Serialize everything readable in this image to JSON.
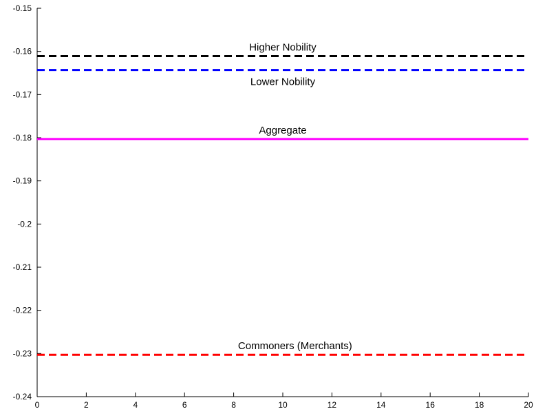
{
  "chart_data": {
    "type": "line",
    "title": "",
    "xlabel": "",
    "ylabel": "",
    "xlim": [
      0,
      20
    ],
    "ylim": [
      -0.24,
      -0.15
    ],
    "x_ticks": [
      0,
      2,
      4,
      6,
      8,
      10,
      12,
      14,
      16,
      18,
      20
    ],
    "x_tick_labels": [
      "0",
      "2",
      "4",
      "6",
      "8",
      "10",
      "12",
      "14",
      "16",
      "18",
      "20"
    ],
    "y_ticks": [
      -0.15,
      -0.16,
      -0.17,
      -0.18,
      -0.19,
      -0.2,
      -0.21,
      -0.22,
      -0.23,
      -0.24
    ],
    "y_tick_labels": [
      "-0.15",
      "-0.16",
      "-0.17",
      "-0.18",
      "-0.19",
      "-0.2",
      "-0.21",
      "-0.22",
      "-0.23",
      "-0.24"
    ],
    "grid": false,
    "x": [
      0,
      20
    ],
    "series": [
      {
        "name": "Higher Nobility",
        "values": [
          -0.1611,
          -0.1611
        ],
        "color": "#000000",
        "dash": "dashed",
        "label_x": 10
      },
      {
        "name": "Lower Nobility",
        "values": [
          -0.1643,
          -0.1643
        ],
        "color": "#0000ff",
        "dash": "dashed",
        "label_x": 10
      },
      {
        "name": "Aggregate",
        "values": [
          -0.1803,
          -0.1803
        ],
        "color": "#ff00ff",
        "dash": "solid",
        "label_x": 10
      },
      {
        "name": "Commoners (Merchants)",
        "values": [
          -0.2303,
          -0.2303
        ],
        "color": "#ff0000",
        "dash": "dashed",
        "label_x": 10.5
      }
    ]
  }
}
